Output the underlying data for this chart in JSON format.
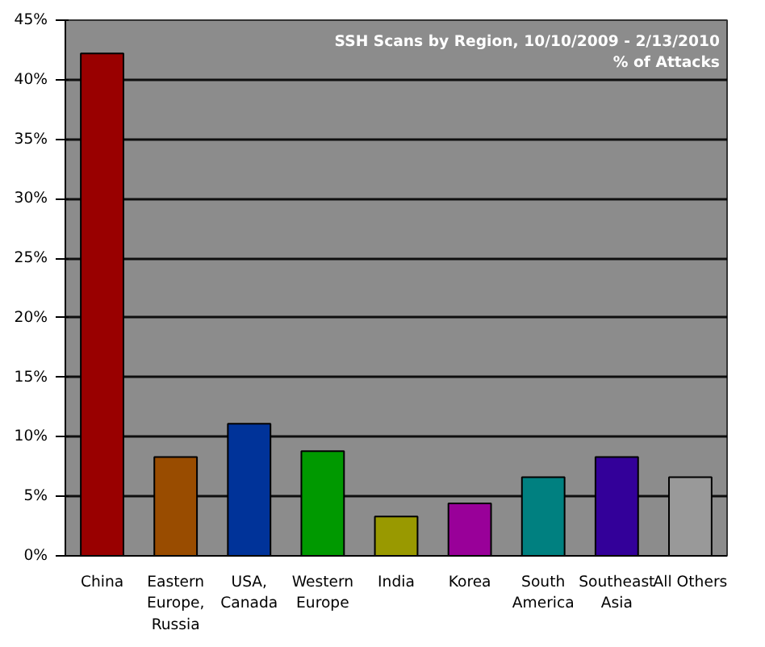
{
  "chart_data": {
    "type": "bar",
    "title": "SSH Scans by Region, 10/10/2009 - 2/13/2010",
    "subtitle": "% of Attacks",
    "categories": [
      "China",
      "Eastern Europe, Russia",
      "USA, Canada",
      "Western Europe",
      "India",
      "Korea",
      "South America",
      "Southeast Asia",
      "All Others"
    ],
    "values": [
      42.2,
      8.3,
      11.1,
      8.8,
      3.3,
      4.4,
      6.6,
      8.3,
      6.6
    ],
    "colors": [
      "#990000",
      "#994c00",
      "#003399",
      "#009900",
      "#999900",
      "#990099",
      "#008080",
      "#330099",
      "#999999"
    ],
    "ylim": [
      0,
      45
    ],
    "yticks": [
      {
        "value": 0,
        "label": "0%"
      },
      {
        "value": 5,
        "label": "5%"
      },
      {
        "value": 10,
        "label": "10%"
      },
      {
        "value": 15,
        "label": "15%"
      },
      {
        "value": 20,
        "label": "20%"
      },
      {
        "value": 25,
        "label": "25%"
      },
      {
        "value": 30,
        "label": "30%"
      },
      {
        "value": 35,
        "label": "35%"
      },
      {
        "value": 40,
        "label": "40%"
      },
      {
        "value": 45,
        "label": "45%"
      }
    ],
    "grid": "y"
  }
}
